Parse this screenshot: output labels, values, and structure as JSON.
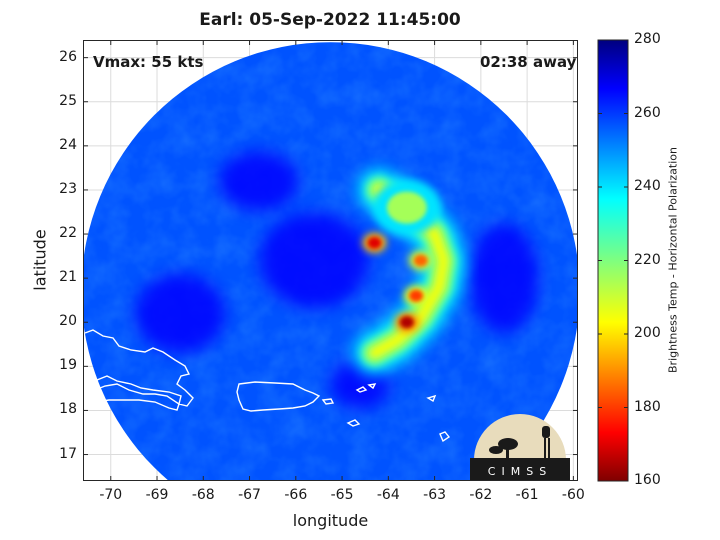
{
  "title": "Earl: 05-Sep-2022 11:45:00",
  "vmax_label": "Vmax: 55 kts",
  "time_label": "02:38 away",
  "xlabel": "longitude",
  "ylabel": "latitude",
  "colorbar_label": "Brightness Temp - Horizontal Polarization",
  "logo_text": "CIMSS",
  "chart_data": {
    "type": "heatmap",
    "title": "Earl: 05-Sep-2022 11:45:00",
    "xlabel": "longitude",
    "ylabel": "latitude",
    "xlim": [
      -70.6,
      -59.9
    ],
    "ylim": [
      16.4,
      26.4
    ],
    "xticks": [
      -70,
      -69,
      -68,
      -67,
      -66,
      -65,
      -64,
      -63,
      -62,
      -61,
      -60
    ],
    "yticks": [
      17,
      18,
      19,
      20,
      21,
      22,
      23,
      24,
      25,
      26
    ],
    "grid": true,
    "colorbar": {
      "label": "Brightness Temp - Horizontal Polarization",
      "range": [
        160,
        280
      ],
      "ticks": [
        160,
        180,
        200,
        220,
        240,
        260,
        280
      ],
      "colormap": "jet"
    },
    "swath": {
      "center_lon": -65.25,
      "center_lat": 20.7,
      "radius_deg_lat": 5.65
    },
    "features": [
      {
        "name": "rainband-arc",
        "lon": [
          -64.2,
          -63.6,
          -63.0,
          -62.8,
          -62.9,
          -63.3,
          -63.8,
          -64.3
        ],
        "lat": [
          23.0,
          22.6,
          22.0,
          21.4,
          20.8,
          20.1,
          19.6,
          19.3
        ],
        "tb": 205
      },
      {
        "name": "cold-cell-1",
        "lon": -63.6,
        "lat": 20.0,
        "tb": 165
      },
      {
        "name": "cold-cell-2",
        "lon": -64.3,
        "lat": 21.8,
        "tb": 170
      },
      {
        "name": "cold-cell-3",
        "lon": -63.3,
        "lat": 21.4,
        "tb": 185
      },
      {
        "name": "cold-cell-4",
        "lon": -63.4,
        "lat": 20.6,
        "tb": 180
      },
      {
        "name": "northern-convection",
        "lon": -63.6,
        "lat": 22.6,
        "tb": 215
      }
    ]
  }
}
